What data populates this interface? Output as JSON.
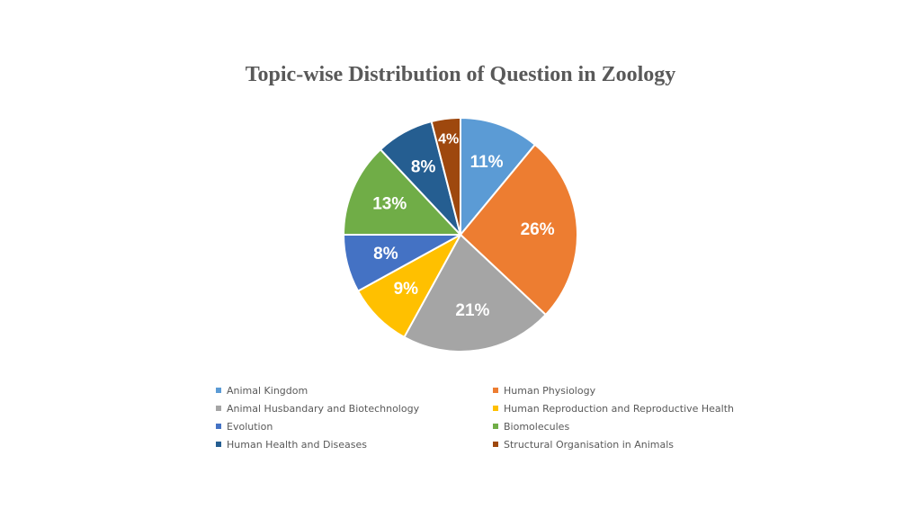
{
  "chart_data": {
    "type": "pie",
    "title": "Topic-wise Distribution of Question in Zoology",
    "categories": [
      "Animal Kingdom",
      "Human Physiology",
      "Animal Husbandary and Biotechnology",
      "Human Reproduction and Reproductive Health",
      "Evolution",
      "Biomolecules",
      "Human Health and Diseases",
      "Structural Organisation in Animals"
    ],
    "values": [
      11,
      26,
      21,
      9,
      8,
      13,
      8,
      4
    ],
    "labels": [
      "11%",
      "26%",
      "21%",
      "9%",
      "8%",
      "13%",
      "8%",
      "4%"
    ],
    "colors": [
      "#5B9BD5",
      "#ED7D31",
      "#A5A5A5",
      "#FFC000",
      "#4472C4",
      "#70AD47",
      "#255E91",
      "#9E480E"
    ],
    "legend_position": "bottom"
  }
}
